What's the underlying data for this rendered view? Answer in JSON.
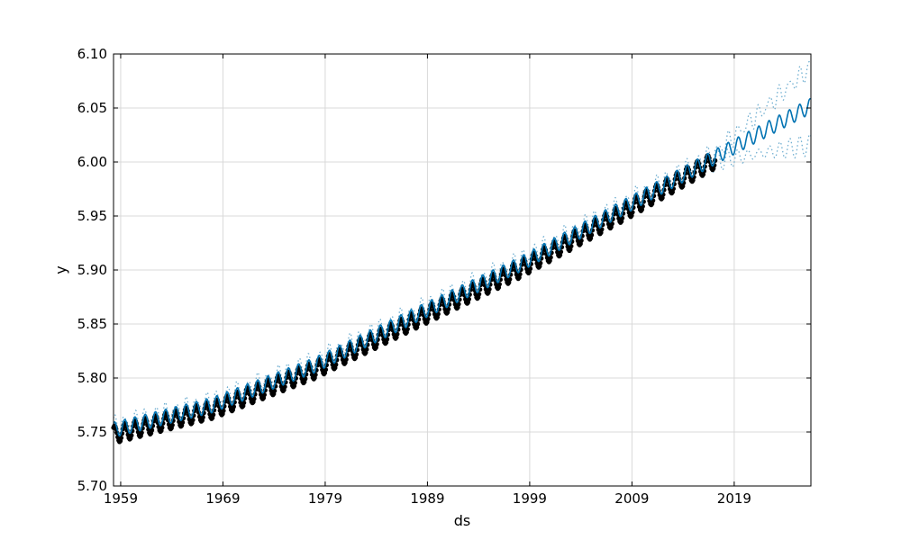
{
  "chart_data": {
    "type": "line",
    "title": "",
    "xlabel": "ds",
    "ylabel": "y",
    "xlim": [
      1958.3,
      2026.5
    ],
    "ylim": [
      5.7,
      6.1
    ],
    "grid": true,
    "x_ticks": [
      {
        "value": 1959,
        "label": "1959"
      },
      {
        "value": 1969,
        "label": "1969"
      },
      {
        "value": 1979,
        "label": "1979"
      },
      {
        "value": 1989,
        "label": "1989"
      },
      {
        "value": 1999,
        "label": "1999"
      },
      {
        "value": 2009,
        "label": "2009"
      },
      {
        "value": 2019,
        "label": "2019"
      }
    ],
    "y_ticks": [
      {
        "value": 5.7,
        "label": "5.70"
      },
      {
        "value": 5.75,
        "label": "5.75"
      },
      {
        "value": 5.8,
        "label": "5.80"
      },
      {
        "value": 5.85,
        "label": "5.85"
      },
      {
        "value": 5.9,
        "label": "5.90"
      },
      {
        "value": 5.95,
        "label": "5.95"
      },
      {
        "value": 6.0,
        "label": "6.00"
      },
      {
        "value": 6.05,
        "label": "6.05"
      },
      {
        "value": 6.1,
        "label": "6.10"
      }
    ],
    "series": [
      {
        "role": "observed",
        "style": "black dots",
        "x_range": [
          1958.3,
          2017.2
        ],
        "trend_points": [
          [
            1958.3,
            5.75
          ],
          [
            1968,
            5.773
          ],
          [
            1978,
            5.81
          ],
          [
            1988,
            5.857
          ],
          [
            1998,
            5.903
          ],
          [
            2008,
            5.955
          ],
          [
            2017.2,
            6.005
          ]
        ],
        "seasonal_amplitude": 0.008,
        "samples_per_year": 12
      },
      {
        "role": "forecast",
        "style": "blue line",
        "x_range": [
          1958.3,
          2026.5
        ],
        "trend_points": [
          [
            1958.3,
            5.752
          ],
          [
            1968,
            5.775
          ],
          [
            1978,
            5.812
          ],
          [
            1988,
            5.859
          ],
          [
            1998,
            5.905
          ],
          [
            2008,
            5.957
          ],
          [
            2017.2,
            6.005
          ],
          [
            2026.5,
            6.052
          ]
        ],
        "seasonal_amplitude": 0.007,
        "samples_per_year": 12
      },
      {
        "role": "uncertainty-interval",
        "style": "light blue dotted",
        "x_range": [
          1958.3,
          2026.5
        ],
        "half_width_in_sample": 0.004,
        "half_width_at_end": 0.036
      }
    ],
    "colors": {
      "observed": "#000000",
      "forecast": "#0072B2",
      "interval": "#6FAED0",
      "grid": "#D9D9D9"
    }
  }
}
